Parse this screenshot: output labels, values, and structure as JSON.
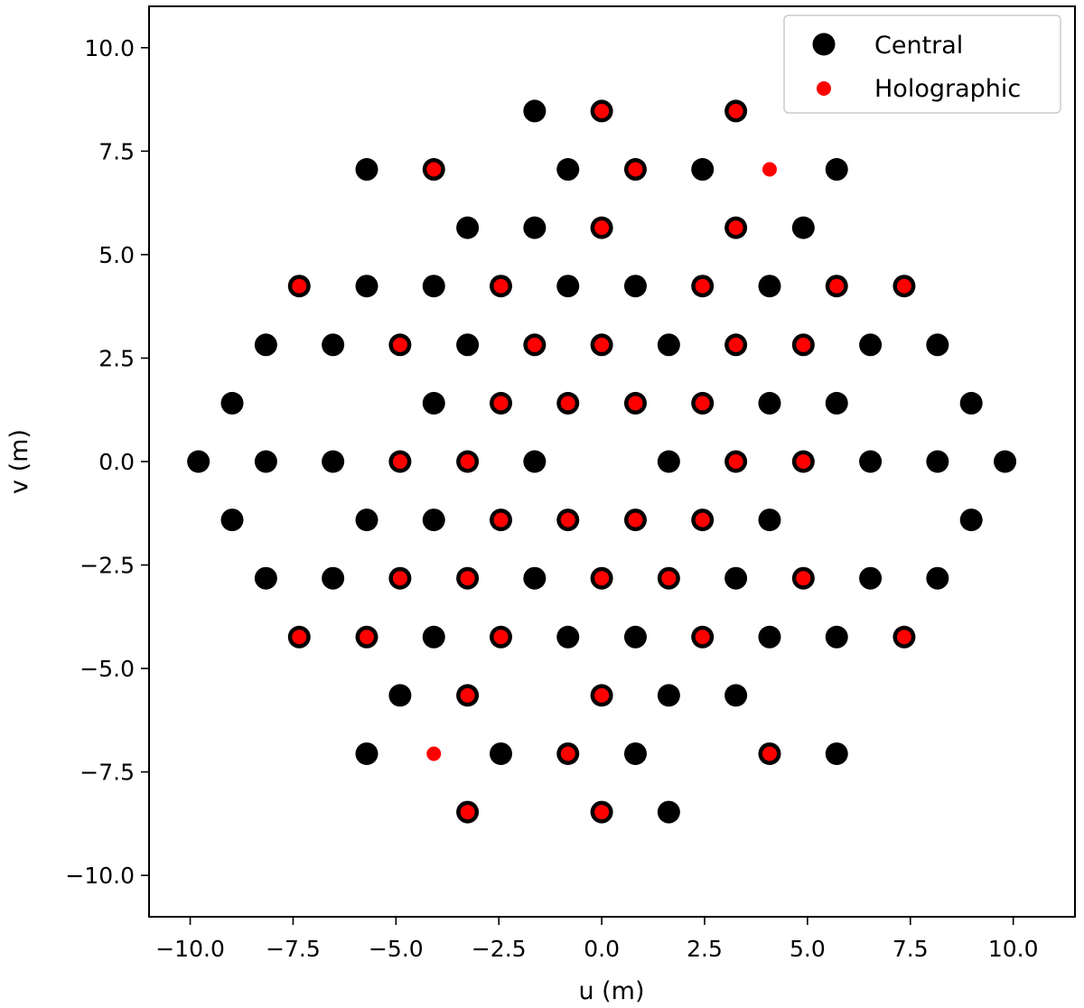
{
  "chart_data": {
    "type": "scatter",
    "xlabel": "u (m)",
    "ylabel": "v (m)",
    "xlim": [
      -11,
      11.5
    ],
    "ylim": [
      -11,
      11
    ],
    "xticks": [
      -10,
      -7.5,
      -5,
      -2.5,
      0,
      2.5,
      5,
      7.5,
      10
    ],
    "yticks": [
      -10,
      -7.5,
      -5,
      -2.5,
      0,
      2.5,
      5,
      7.5,
      10
    ],
    "xtick_labels": [
      "−10.0",
      "−7.5",
      "−5.0",
      "−2.5",
      "0.0",
      "2.5",
      "5.0",
      "7.5",
      "10.0"
    ],
    "ytick_labels": [
      "−10.0",
      "−7.5",
      "−5.0",
      "−2.5",
      "0.0",
      "2.5",
      "5.0",
      "7.5",
      "10.0"
    ],
    "grid": false,
    "legend_position": "top-right",
    "series": [
      {
        "name": "Central",
        "color": "#000000",
        "marker": "large-dot",
        "points": [
          [
            -1.63,
            8.47
          ],
          [
            0,
            8.47
          ],
          [
            3.26,
            8.47
          ],
          [
            -5.71,
            7.06
          ],
          [
            -4.08,
            7.06
          ],
          [
            -0.82,
            7.06
          ],
          [
            0.82,
            7.06
          ],
          [
            2.45,
            7.06
          ],
          [
            5.71,
            7.06
          ],
          [
            -3.26,
            5.65
          ],
          [
            -1.63,
            5.65
          ],
          [
            0,
            5.65
          ],
          [
            3.26,
            5.65
          ],
          [
            4.9,
            5.65
          ],
          [
            -7.35,
            4.24
          ],
          [
            -5.71,
            4.24
          ],
          [
            -4.08,
            4.24
          ],
          [
            -2.45,
            4.24
          ],
          [
            -0.82,
            4.24
          ],
          [
            0.82,
            4.24
          ],
          [
            2.45,
            4.24
          ],
          [
            4.08,
            4.24
          ],
          [
            5.71,
            4.24
          ],
          [
            7.35,
            4.24
          ],
          [
            -8.16,
            2.82
          ],
          [
            -6.53,
            2.82
          ],
          [
            -4.9,
            2.82
          ],
          [
            -3.26,
            2.82
          ],
          [
            -1.63,
            2.82
          ],
          [
            0,
            2.82
          ],
          [
            1.63,
            2.82
          ],
          [
            3.26,
            2.82
          ],
          [
            4.9,
            2.82
          ],
          [
            6.53,
            2.82
          ],
          [
            8.16,
            2.82
          ],
          [
            -8.98,
            1.41
          ],
          [
            -4.08,
            1.41
          ],
          [
            -2.45,
            1.41
          ],
          [
            -0.82,
            1.41
          ],
          [
            0.82,
            1.41
          ],
          [
            2.45,
            1.41
          ],
          [
            4.08,
            1.41
          ],
          [
            5.71,
            1.41
          ],
          [
            8.98,
            1.41
          ],
          [
            -9.8,
            0
          ],
          [
            -8.16,
            0
          ],
          [
            -6.53,
            0
          ],
          [
            -4.9,
            0
          ],
          [
            -3.26,
            0
          ],
          [
            -1.63,
            0
          ],
          [
            1.63,
            0
          ],
          [
            3.26,
            0
          ],
          [
            4.9,
            0
          ],
          [
            6.53,
            0
          ],
          [
            8.16,
            0
          ],
          [
            9.8,
            0
          ],
          [
            -8.98,
            -1.41
          ],
          [
            -5.71,
            -1.41
          ],
          [
            -4.08,
            -1.41
          ],
          [
            -2.45,
            -1.41
          ],
          [
            -0.82,
            -1.41
          ],
          [
            0.82,
            -1.41
          ],
          [
            2.45,
            -1.41
          ],
          [
            4.08,
            -1.41
          ],
          [
            8.98,
            -1.41
          ],
          [
            -8.16,
            -2.82
          ],
          [
            -6.53,
            -2.82
          ],
          [
            -4.9,
            -2.82
          ],
          [
            -3.26,
            -2.82
          ],
          [
            -1.63,
            -2.82
          ],
          [
            0,
            -2.82
          ],
          [
            1.63,
            -2.82
          ],
          [
            3.26,
            -2.82
          ],
          [
            4.9,
            -2.82
          ],
          [
            6.53,
            -2.82
          ],
          [
            8.16,
            -2.82
          ],
          [
            -7.35,
            -4.24
          ],
          [
            -5.71,
            -4.24
          ],
          [
            -4.08,
            -4.24
          ],
          [
            -2.45,
            -4.24
          ],
          [
            -0.82,
            -4.24
          ],
          [
            0.82,
            -4.24
          ],
          [
            2.45,
            -4.24
          ],
          [
            4.08,
            -4.24
          ],
          [
            5.71,
            -4.24
          ],
          [
            7.35,
            -4.24
          ],
          [
            -4.9,
            -5.65
          ],
          [
            -3.26,
            -5.65
          ],
          [
            0,
            -5.65
          ],
          [
            1.63,
            -5.65
          ],
          [
            3.26,
            -5.65
          ],
          [
            -5.71,
            -7.06
          ],
          [
            -2.45,
            -7.06
          ],
          [
            -0.82,
            -7.06
          ],
          [
            0.82,
            -7.06
          ],
          [
            4.08,
            -7.06
          ],
          [
            5.71,
            -7.06
          ],
          [
            -3.26,
            -8.47
          ],
          [
            0,
            -8.47
          ],
          [
            1.63,
            -8.47
          ]
        ]
      },
      {
        "name": "Holographic",
        "color": "#ff0000",
        "marker": "small-dot",
        "points": [
          [
            0,
            8.47
          ],
          [
            3.26,
            8.47
          ],
          [
            -4.08,
            7.06
          ],
          [
            0.82,
            7.06
          ],
          [
            4.08,
            7.06
          ],
          [
            0,
            5.65
          ],
          [
            3.26,
            5.65
          ],
          [
            -7.35,
            4.24
          ],
          [
            -2.45,
            4.24
          ],
          [
            2.45,
            4.24
          ],
          [
            5.71,
            4.24
          ],
          [
            7.35,
            4.24
          ],
          [
            -4.9,
            2.82
          ],
          [
            -1.63,
            2.82
          ],
          [
            0,
            2.82
          ],
          [
            3.26,
            2.82
          ],
          [
            4.9,
            2.82
          ],
          [
            -2.45,
            1.41
          ],
          [
            -0.82,
            1.41
          ],
          [
            0.82,
            1.41
          ],
          [
            2.45,
            1.41
          ],
          [
            -4.9,
            0
          ],
          [
            -3.26,
            0
          ],
          [
            3.26,
            0
          ],
          [
            4.9,
            0
          ],
          [
            -2.45,
            -1.41
          ],
          [
            -0.82,
            -1.41
          ],
          [
            0.82,
            -1.41
          ],
          [
            2.45,
            -1.41
          ],
          [
            -4.9,
            -2.82
          ],
          [
            -3.26,
            -2.82
          ],
          [
            0,
            -2.82
          ],
          [
            1.63,
            -2.82
          ],
          [
            4.9,
            -2.82
          ],
          [
            -7.35,
            -4.24
          ],
          [
            -5.71,
            -4.24
          ],
          [
            -2.45,
            -4.24
          ],
          [
            2.45,
            -4.24
          ],
          [
            7.35,
            -4.24
          ],
          [
            -3.26,
            -5.65
          ],
          [
            0,
            -5.65
          ],
          [
            -4.08,
            -7.06
          ],
          [
            -0.82,
            -7.06
          ],
          [
            4.08,
            -7.06
          ],
          [
            -3.26,
            -8.47
          ],
          [
            0,
            -8.47
          ]
        ]
      }
    ]
  }
}
